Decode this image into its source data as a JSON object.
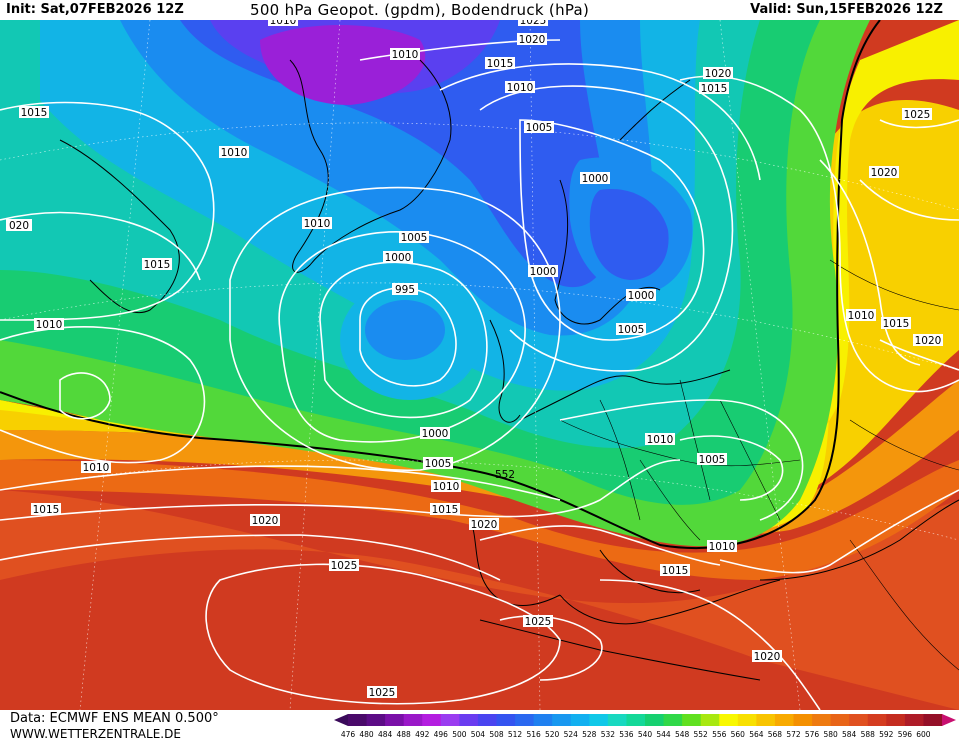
{
  "header": {
    "init": "Init: Sat,07FEB2026 12Z",
    "title": "500 hPa Geopot. (gpdm), Bodendruck (hPa)",
    "valid": "Valid: Sun,15FEB2026 12Z"
  },
  "footer": {
    "data_source": "Data: ECMWF ENS MEAN 0.500°",
    "website": "WWW.WETTERZENTRALE.DE"
  },
  "legend": {
    "values": [
      "476",
      "480",
      "484",
      "488",
      "492",
      "496",
      "500",
      "504",
      "508",
      "512",
      "516",
      "520",
      "524",
      "528",
      "532",
      "536",
      "540",
      "544",
      "548",
      "552",
      "556",
      "560",
      "564",
      "568",
      "572",
      "576",
      "580",
      "584",
      "588",
      "592",
      "596",
      "600"
    ],
    "colors": [
      "#4a0a6a",
      "#5c0c86",
      "#7a10a8",
      "#9a18c8",
      "#b41ee0",
      "#9a3cf0",
      "#6a3cf0",
      "#4a44f0",
      "#3454f0",
      "#2a68f0",
      "#1f80f0",
      "#1898f0",
      "#12b0f0",
      "#10c8e8",
      "#18d8c0",
      "#14d898",
      "#16d070",
      "#30d848",
      "#60e020",
      "#a8e810",
      "#f8f800",
      "#f8e000",
      "#f8c400",
      "#f8aa00",
      "#f49000",
      "#ee7a10",
      "#e86418",
      "#e05020",
      "#d43c20",
      "#c42c20",
      "#ae1c28",
      "#941028"
    ]
  },
  "map": {
    "contour_552_label": "552",
    "isobars": [
      {
        "label": "1010"
      },
      {
        "label": "1020"
      },
      {
        "label": "1025"
      },
      {
        "label": "1010"
      },
      {
        "label": "1015"
      },
      {
        "label": "1010"
      },
      {
        "label": "1020"
      },
      {
        "label": "1015"
      },
      {
        "label": "1015"
      },
      {
        "label": "1005"
      },
      {
        "label": "1025"
      },
      {
        "label": "1010"
      },
      {
        "label": "1020"
      },
      {
        "label": "1000"
      },
      {
        "label": "1010"
      },
      {
        "label": "020"
      },
      {
        "label": "1005"
      },
      {
        "label": "1015"
      },
      {
        "label": "1000"
      },
      {
        "label": "1000"
      },
      {
        "label": "995"
      },
      {
        "label": "1000"
      },
      {
        "label": "1010"
      },
      {
        "label": "1010"
      },
      {
        "label": "1015"
      },
      {
        "label": "1005"
      },
      {
        "label": "1020"
      },
      {
        "label": "1000"
      },
      {
        "label": "1010"
      },
      {
        "label": "1005"
      },
      {
        "label": "1010"
      },
      {
        "label": "1005"
      },
      {
        "label": "1010"
      },
      {
        "label": "1015"
      },
      {
        "label": "1015"
      },
      {
        "label": "1020"
      },
      {
        "label": "1020"
      },
      {
        "label": "1010"
      },
      {
        "label": "1025"
      },
      {
        "label": "1015"
      },
      {
        "label": "1025"
      },
      {
        "label": "1020"
      },
      {
        "label": "1025"
      }
    ]
  }
}
